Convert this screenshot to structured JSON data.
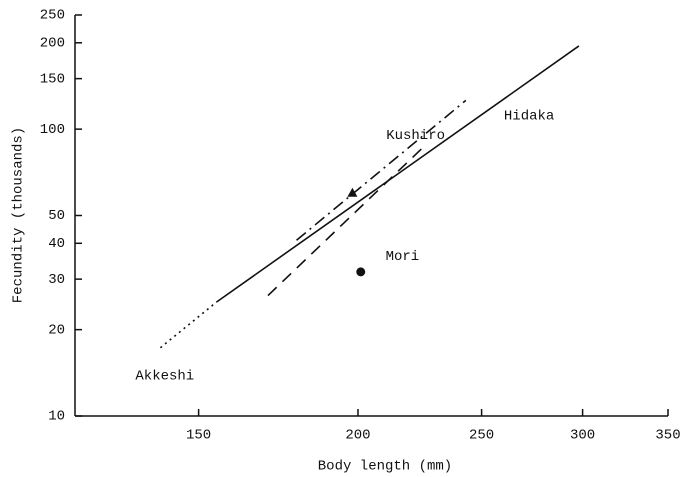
{
  "chart_data": {
    "type": "line",
    "x_label": "Body length (mm)",
    "y_label": "Fecundity (thousands)",
    "log_x": true,
    "log_y": true,
    "xlim": [
      120,
      350
    ],
    "xticks": [
      150,
      200,
      250,
      300,
      350
    ],
    "ylim": [
      10,
      250
    ],
    "yticks": [
      10,
      20,
      30,
      40,
      50,
      100,
      150,
      200,
      250
    ],
    "color": "#111111",
    "series": [
      {
        "name": "Akkeshi",
        "dash": "dotted",
        "x": [
          140,
          155
        ],
        "values": [
          17.3,
          25
        ]
      },
      {
        "name": "Hidaka",
        "dash": "solid",
        "x": [
          155,
          298
        ],
        "values": [
          25,
          195
        ]
      },
      {
        "name": "Kushiro",
        "dash": "dashdot",
        "x": [
          179,
          243
        ],
        "values": [
          41,
          126
        ]
      },
      {
        "name": "Mori",
        "dash": "dashed",
        "x": [
          170,
          225
        ],
        "values": [
          26.3,
          86.5
        ]
      }
    ],
    "points": [
      {
        "marker": "triangle",
        "x": 198,
        "y": 60
      },
      {
        "marker": "circle",
        "x": 201,
        "y": 31.8
      }
    ]
  }
}
